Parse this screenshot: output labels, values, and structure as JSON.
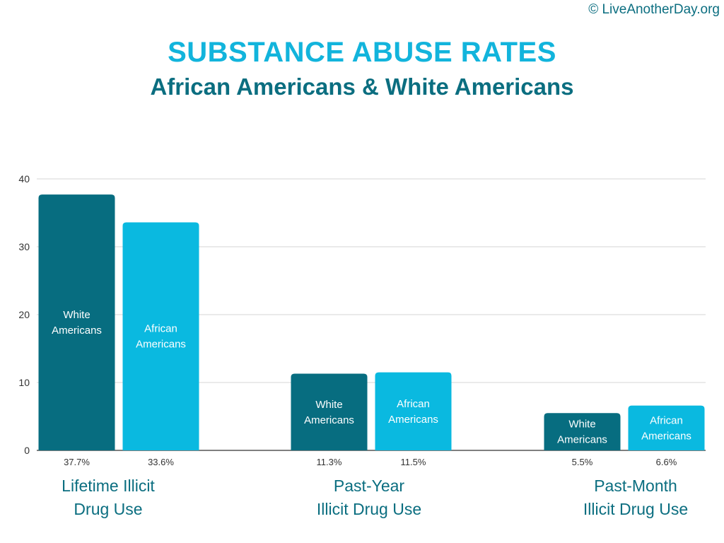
{
  "copyright": "© LiveAnotherDay.org",
  "colors": {
    "white_americans": "#076d80",
    "african_americans": "#0ab9e0",
    "title": "#12b4dc",
    "subtitle": "#0b6e80",
    "grid": "#d4d4d4"
  },
  "chart_data": {
    "type": "bar",
    "title": "SUBSTANCE ABUSE RATES",
    "subtitle": "African Americans & White Americans",
    "categories": [
      "Lifetime Illicit Drug Use",
      "Past-Year Illicit Drug Use",
      "Past-Month Illicit Drug Use"
    ],
    "category_label_lines": [
      [
        "Lifetime Illicit",
        "Drug Use"
      ],
      [
        "Past-Year",
        "Illicit Drug Use"
      ],
      [
        "Past-Month",
        "Illicit Drug Use"
      ]
    ],
    "series": [
      {
        "name": "White Americans",
        "name_lines": [
          "White",
          "Americans"
        ],
        "values": [
          37.7,
          11.3,
          5.5
        ],
        "value_labels": [
          "37.7%",
          "11.3%",
          "5.5%"
        ]
      },
      {
        "name": "African Americans",
        "name_lines": [
          "African",
          "Americans"
        ],
        "values": [
          33.6,
          11.5,
          6.6
        ],
        "value_labels": [
          "33.6%",
          "11.5%",
          "6.6%"
        ]
      }
    ],
    "ylim": [
      0,
      40
    ],
    "yticks": [
      0,
      10,
      20,
      30,
      40
    ],
    "grid": true,
    "legend": "none"
  }
}
